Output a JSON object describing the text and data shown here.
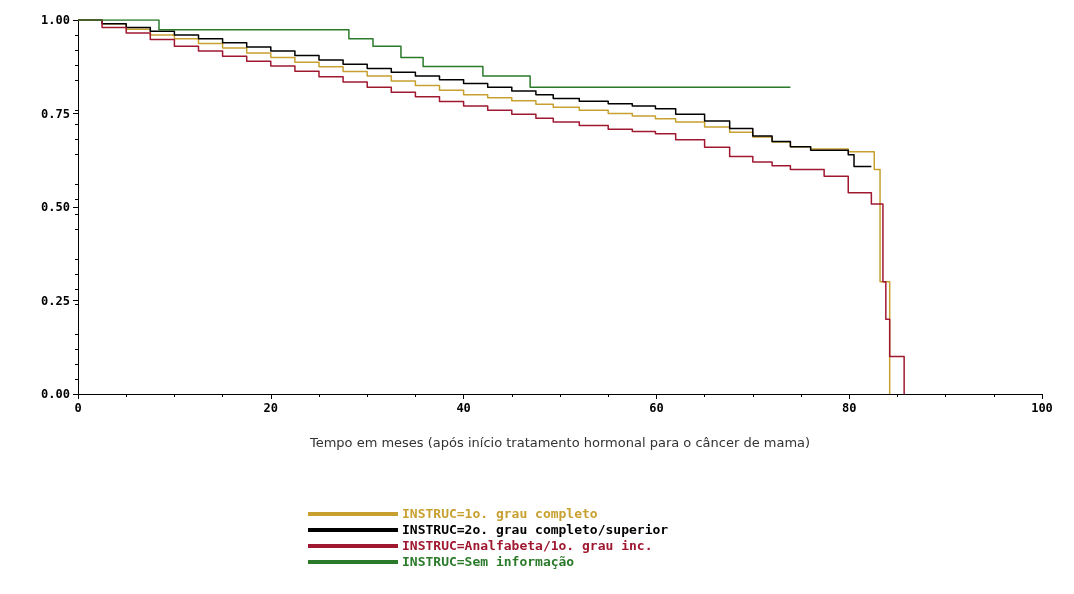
{
  "chart_data": {
    "type": "step",
    "xlabel": "Tempo em meses (após início tratamento hormonal para o câncer de mama)",
    "xlim": [
      0,
      100
    ],
    "xticks": [
      0,
      20,
      40,
      60,
      80,
      100
    ],
    "ylim": [
      0,
      1
    ],
    "yticks": [
      {
        "value": 0,
        "label": "0.00"
      },
      {
        "value": 0.25,
        "label": "0.25"
      },
      {
        "value": 0.5,
        "label": "0.50"
      },
      {
        "value": 0.75,
        "label": "0.75"
      },
      {
        "value": 1,
        "label": "1.00"
      }
    ],
    "grid": false,
    "legend": "bottom",
    "marker": "none",
    "line_style": "solid",
    "series": [
      {
        "name": "INSTRUC=1o. grau completo",
        "color": "#c8a030",
        "x": [
          0,
          2.5,
          5,
          7.5,
          10,
          12.5,
          15,
          17.5,
          20,
          22.5,
          25,
          27.5,
          30,
          32.5,
          35,
          37.5,
          40,
          42.5,
          45,
          47.5,
          49.3,
          52,
          55,
          57.5,
          59.9,
          62,
          65,
          67.6,
          70,
          72,
          73.9,
          76,
          79.9,
          82.6,
          83.2,
          84.2
        ],
        "values": [
          1,
          0.99,
          0.975,
          0.96,
          0.95,
          0.937,
          0.925,
          0.912,
          0.9,
          0.887,
          0.875,
          0.862,
          0.85,
          0.837,
          0.825,
          0.812,
          0.8,
          0.792,
          0.784,
          0.775,
          0.767,
          0.759,
          0.75,
          0.743,
          0.736,
          0.727,
          0.714,
          0.7,
          0.687,
          0.674,
          0.661,
          0.655,
          0.648,
          0.6,
          0.3,
          0
        ]
      },
      {
        "name": "INSTRUC=2o. grau completo/superior",
        "color": "#000000",
        "x": [
          0,
          2.5,
          5,
          7.5,
          10,
          12.5,
          15,
          17.5,
          20,
          22.5,
          25,
          27.5,
          30,
          32.5,
          35,
          37.5,
          40,
          42.5,
          45,
          47.5,
          49.3,
          52,
          55,
          57.5,
          59.9,
          62,
          65,
          67.6,
          70,
          72,
          73.9,
          76,
          79.9,
          80.5,
          82.3
        ],
        "values": [
          1,
          0.99,
          0.98,
          0.97,
          0.96,
          0.95,
          0.939,
          0.928,
          0.917,
          0.905,
          0.893,
          0.882,
          0.87,
          0.86,
          0.85,
          0.84,
          0.83,
          0.82,
          0.81,
          0.8,
          0.79,
          0.783,
          0.776,
          0.77,
          0.763,
          0.748,
          0.73,
          0.71,
          0.69,
          0.675,
          0.661,
          0.652,
          0.64,
          0.608,
          0.608
        ]
      },
      {
        "name": "INSTRUC=Analfabeta/1o. grau inc.",
        "color": "#a01830",
        "x": [
          0,
          2.5,
          5,
          7.5,
          10,
          12.5,
          15,
          17.5,
          20,
          22.5,
          25,
          27.5,
          30,
          32.5,
          35,
          37.5,
          40,
          42.5,
          45,
          47.5,
          49.3,
          52,
          55,
          57.5,
          59.9,
          62,
          65,
          67.6,
          70,
          72,
          73.9,
          77.4,
          79.9,
          82.3,
          83.5,
          83.8,
          84.2,
          85.7
        ],
        "values": [
          1,
          0.98,
          0.965,
          0.948,
          0.93,
          0.917,
          0.903,
          0.89,
          0.877,
          0.863,
          0.848,
          0.834,
          0.82,
          0.807,
          0.795,
          0.782,
          0.77,
          0.759,
          0.748,
          0.737,
          0.727,
          0.718,
          0.708,
          0.702,
          0.696,
          0.68,
          0.66,
          0.635,
          0.62,
          0.61,
          0.6,
          0.582,
          0.538,
          0.508,
          0.3,
          0.2,
          0.1,
          0
        ]
      },
      {
        "name": "INSTRUC=Sem informação",
        "color": "#2a7a2a",
        "x": [
          0,
          8.4,
          28.1,
          30.6,
          33.5,
          35.8,
          42,
          46.9,
          73.9
        ],
        "values": [
          1,
          0.974,
          0.95,
          0.93,
          0.9,
          0.876,
          0.85,
          0.82,
          0.82
        ]
      }
    ]
  }
}
